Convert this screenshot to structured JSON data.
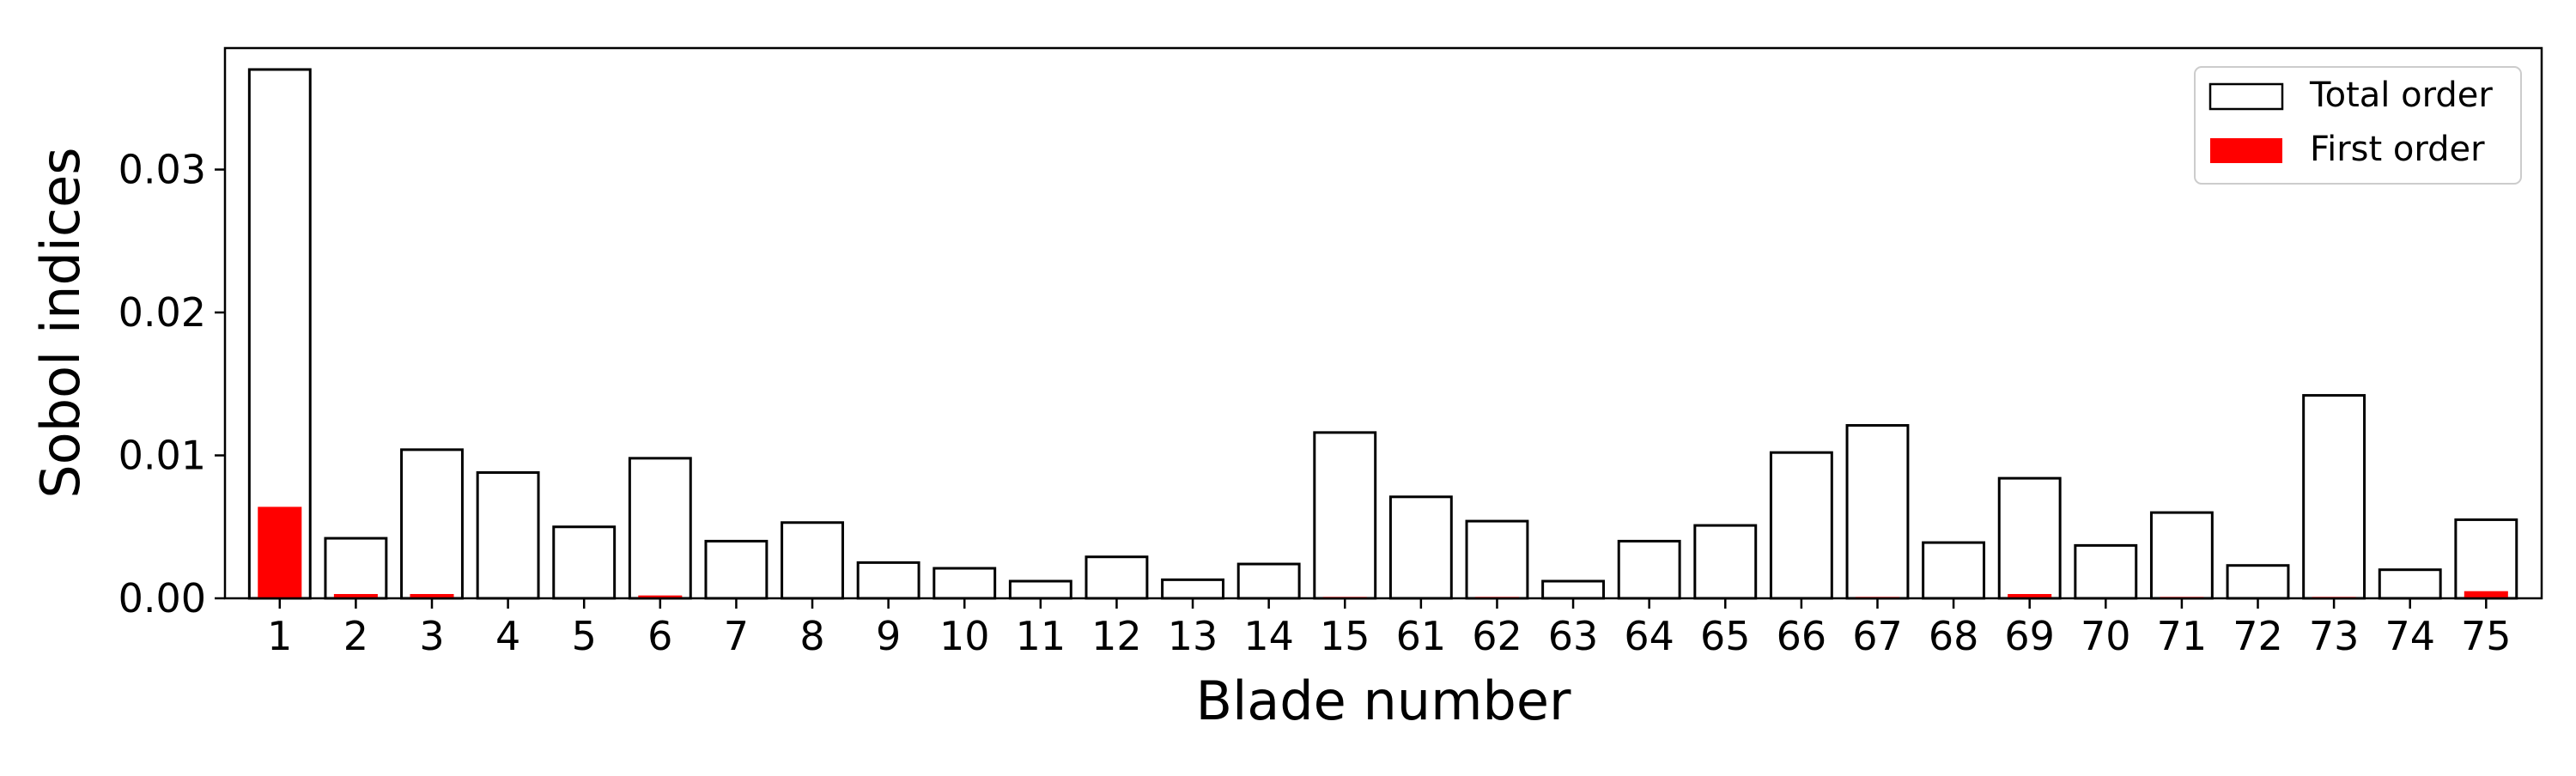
{
  "chart_data": {
    "type": "bar",
    "xlabel": "Blade number",
    "ylabel": "Sobol indices",
    "ylim": [
      0,
      0.0385
    ],
    "yticks": [
      0.0,
      0.01,
      0.02,
      0.03
    ],
    "ytick_labels": [
      "0.00",
      "0.01",
      "0.02",
      "0.03"
    ],
    "grid": false,
    "legend_position": "top-right",
    "categories": [
      "1",
      "2",
      "3",
      "4",
      "5",
      "6",
      "7",
      "8",
      "9",
      "10",
      "11",
      "12",
      "13",
      "14",
      "15",
      "61",
      "62",
      "63",
      "64",
      "65",
      "66",
      "67",
      "68",
      "69",
      "70",
      "71",
      "72",
      "73",
      "74",
      "75"
    ],
    "series": [
      {
        "name": "Total order",
        "style": "outline",
        "color": "#000000",
        "values": [
          0.037,
          0.0042,
          0.0104,
          0.0088,
          0.005,
          0.0098,
          0.004,
          0.0053,
          0.0025,
          0.0021,
          0.0012,
          0.0029,
          0.0013,
          0.0024,
          0.0116,
          0.0071,
          0.0054,
          0.0012,
          0.004,
          0.0051,
          0.0102,
          0.0121,
          0.0039,
          0.0084,
          0.0037,
          0.006,
          0.0023,
          0.0142,
          0.002,
          0.0055
        ]
      },
      {
        "name": "First order",
        "style": "filled",
        "color": "#ff0000",
        "values": [
          0.0064,
          0.0003,
          0.0003,
          0.0,
          0.0,
          0.0002,
          0.0,
          0.0,
          0.0,
          0.0,
          0.0,
          0.0,
          0.0,
          0.0,
          0.0001,
          0.0,
          0.0001,
          0.0,
          0.0,
          0.0,
          0.0,
          0.0001,
          0.0,
          0.0003,
          0.0,
          0.0001,
          0.0,
          0.0001,
          0.0,
          0.0005
        ]
      }
    ]
  }
}
